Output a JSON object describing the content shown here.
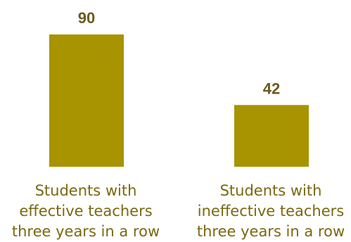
{
  "chart_data": {
    "type": "bar",
    "categories": [
      [
        "Students with",
        "effective teachers",
        "three years in a row"
      ],
      [
        "Students with",
        "ineffective teachers",
        "three years in a row"
      ]
    ],
    "values": [
      90,
      42
    ],
    "value_labels": [
      "90",
      "42"
    ],
    "title": "",
    "xlabel": "",
    "ylabel": "",
    "ylim": [
      0,
      90
    ],
    "grid": false,
    "legend": "none",
    "colors": {
      "bar": "#a89300",
      "value_label": "#6b5a1e",
      "category_label": "#7a6810"
    }
  }
}
